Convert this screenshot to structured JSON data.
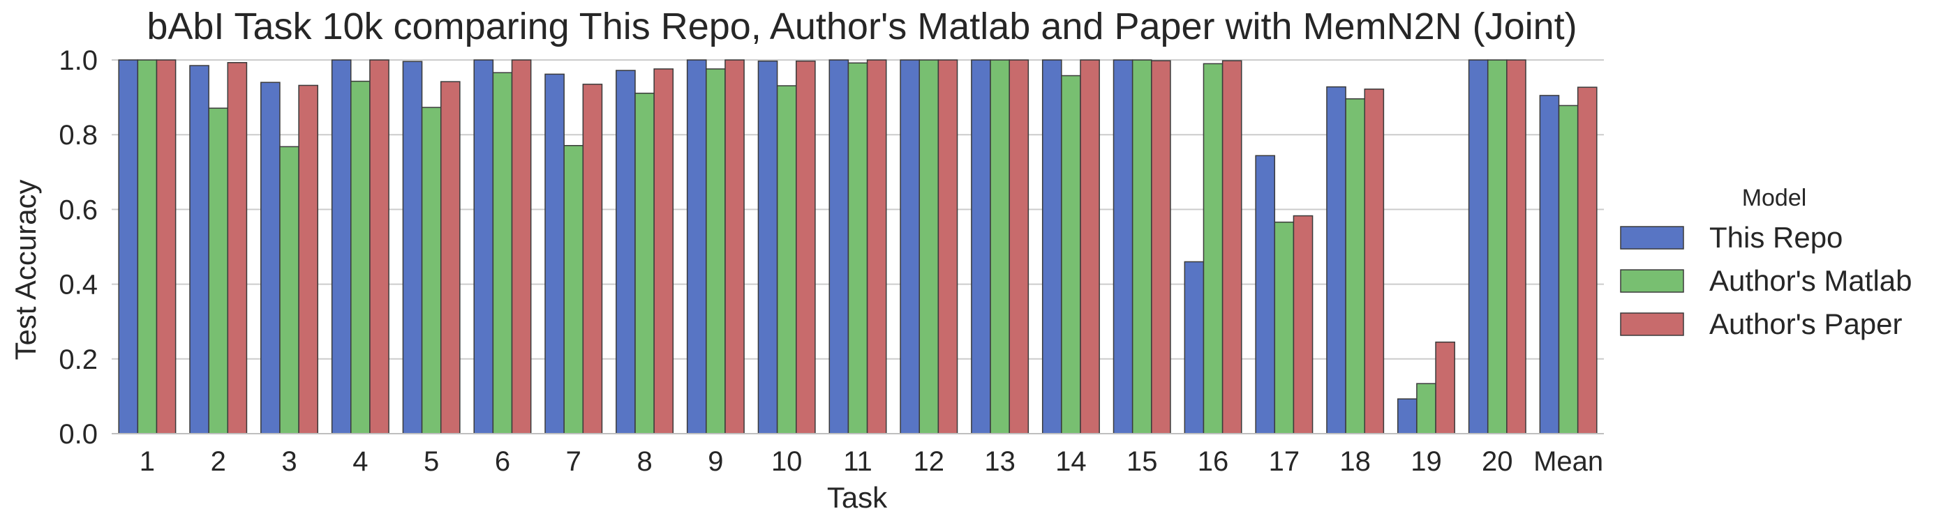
{
  "chart_data": {
    "type": "bar",
    "title": "bAbI Task 10k comparing This Repo, Author's Matlab and Paper with MemN2N (Joint)",
    "xlabel": "Task",
    "ylabel": "Test Accuracy",
    "ylim": [
      0,
      1.0
    ],
    "yticks": [
      "0.0",
      "0.2",
      "0.4",
      "0.6",
      "0.8",
      "1.0"
    ],
    "grid": "horizontal",
    "categories": [
      "1",
      "2",
      "3",
      "4",
      "5",
      "6",
      "7",
      "8",
      "9",
      "10",
      "11",
      "12",
      "13",
      "14",
      "15",
      "16",
      "17",
      "18",
      "19",
      "20",
      "Mean"
    ],
    "legend": {
      "title": "Model",
      "placement": "right"
    },
    "series": [
      {
        "name": "This Repo",
        "color": "#5875C4",
        "values": [
          1.0,
          0.985,
          0.94,
          1.0,
          0.996,
          1.0,
          0.962,
          0.972,
          1.0,
          0.997,
          1.0,
          1.0,
          1.0,
          1.0,
          1.0,
          0.46,
          0.744,
          0.928,
          0.093,
          1.0,
          0.905
        ]
      },
      {
        "name": "Author's Matlab",
        "color": "#78BF71",
        "values": [
          1.0,
          0.871,
          0.768,
          0.943,
          0.873,
          0.966,
          0.771,
          0.911,
          0.976,
          0.931,
          0.992,
          1.0,
          1.0,
          0.958,
          1.0,
          0.99,
          0.566,
          0.896,
          0.134,
          1.0,
          0.878
        ]
      },
      {
        "name": "Author's Paper",
        "color": "#C86B6C",
        "values": [
          1.0,
          0.993,
          0.932,
          1.0,
          0.942,
          1.0,
          0.935,
          0.976,
          1.0,
          0.997,
          1.0,
          1.0,
          1.0,
          1.0,
          0.998,
          0.998,
          0.583,
          0.922,
          0.245,
          1.0,
          0.927
        ]
      }
    ]
  }
}
